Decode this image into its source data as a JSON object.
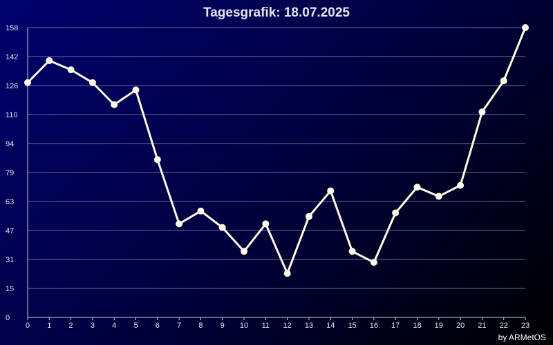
{
  "chart_data": {
    "type": "line",
    "title": "Tagesgrafik: 18.07.2025",
    "credit": "by ARMetOS",
    "xlabel": "",
    "ylabel": "",
    "x": [
      0,
      1,
      2,
      3,
      4,
      5,
      6,
      7,
      8,
      9,
      10,
      11,
      12,
      13,
      14,
      15,
      16,
      17,
      18,
      19,
      20,
      21,
      22,
      23
    ],
    "values": [
      128,
      140,
      135,
      128,
      116,
      124,
      86,
      51,
      58,
      49,
      36,
      51,
      24,
      55,
      69,
      36,
      30,
      57,
      71,
      66,
      72,
      112,
      129,
      158
    ],
    "y_ticks": [
      "158",
      "142",
      "126",
      "110",
      "94",
      "79",
      "63",
      "47",
      "31",
      "15",
      "0"
    ],
    "x_ticks": [
      "0",
      "1",
      "2",
      "3",
      "4",
      "5",
      "6",
      "7",
      "8",
      "9",
      "10",
      "11",
      "12",
      "13",
      "14",
      "15",
      "16",
      "17",
      "18",
      "19",
      "20",
      "21",
      "22",
      "23"
    ],
    "ylim": [
      0,
      158
    ],
    "grid": true,
    "colors": {
      "line": "#fffbe6",
      "grid": "#6e6e9a",
      "axis": "#d0d0d8",
      "text": "#e6e6f0"
    }
  }
}
